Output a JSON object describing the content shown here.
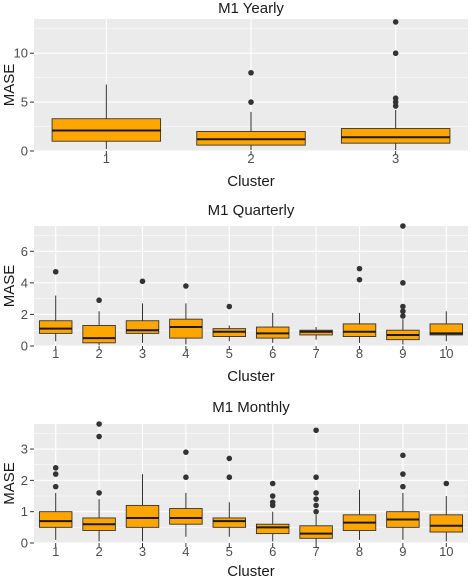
{
  "chart_data": [
    {
      "type": "box",
      "title": "M1 Yearly",
      "xlabel": "Cluster",
      "ylabel": "MASE",
      "ylim": [
        0,
        13.5
      ],
      "yticks": [
        0,
        5,
        10
      ],
      "categories": [
        "1",
        "2",
        "3"
      ],
      "boxes": [
        {
          "low": 0.2,
          "q1": 1.0,
          "median": 2.1,
          "q3": 3.3,
          "high": 6.8,
          "outliers": []
        },
        {
          "low": 0.1,
          "q1": 0.6,
          "median": 1.2,
          "q3": 2.0,
          "high": 4.0,
          "outliers": [
            5.0,
            8.0
          ]
        },
        {
          "low": 0.1,
          "q1": 0.8,
          "median": 1.4,
          "q3": 2.3,
          "high": 4.2,
          "outliers": [
            4.6,
            5.0,
            5.4,
            10.0,
            13.2
          ]
        }
      ]
    },
    {
      "type": "box",
      "title": "M1 Quarterly",
      "xlabel": "Cluster",
      "ylabel": "MASE",
      "ylim": [
        0,
        7.6
      ],
      "yticks": [
        0,
        2,
        4,
        6
      ],
      "categories": [
        "1",
        "2",
        "3",
        "4",
        "5",
        "6",
        "7",
        "8",
        "9",
        "10"
      ],
      "boxes": [
        {
          "low": 0.3,
          "q1": 0.8,
          "median": 1.1,
          "q3": 1.6,
          "high": 3.2,
          "outliers": [
            4.7
          ]
        },
        {
          "low": 0.05,
          "q1": 0.2,
          "median": 0.5,
          "q3": 1.3,
          "high": 2.2,
          "outliers": [
            2.9
          ]
        },
        {
          "low": 0.2,
          "q1": 0.8,
          "median": 1.0,
          "q3": 1.6,
          "high": 2.7,
          "outliers": [
            4.1
          ]
        },
        {
          "low": 0.1,
          "q1": 0.5,
          "median": 1.2,
          "q3": 1.7,
          "high": 2.7,
          "outliers": [
            3.8
          ]
        },
        {
          "low": 0.3,
          "q1": 0.6,
          "median": 0.9,
          "q3": 1.1,
          "high": 1.3,
          "outliers": [
            2.5
          ]
        },
        {
          "low": 0.2,
          "q1": 0.5,
          "median": 0.8,
          "q3": 1.2,
          "high": 2.1,
          "outliers": []
        },
        {
          "low": 0.4,
          "q1": 0.7,
          "median": 0.9,
          "q3": 1.0,
          "high": 1.2,
          "outliers": []
        },
        {
          "low": 0.2,
          "q1": 0.6,
          "median": 0.9,
          "q3": 1.4,
          "high": 2.1,
          "outliers": [
            4.2,
            4.9
          ]
        },
        {
          "low": 0.1,
          "q1": 0.4,
          "median": 0.7,
          "q3": 1.0,
          "high": 1.7,
          "outliers": [
            1.9,
            2.2,
            2.5,
            4.0,
            7.6
          ]
        },
        {
          "low": 0.3,
          "q1": 0.7,
          "median": 0.8,
          "q3": 1.4,
          "high": 2.2,
          "outliers": []
        }
      ]
    },
    {
      "type": "box",
      "title": "M1 Monthly",
      "xlabel": "Cluster",
      "ylabel": "MASE",
      "ylim": [
        0,
        3.8
      ],
      "yticks": [
        0,
        1,
        2,
        3
      ],
      "categories": [
        "1",
        "2",
        "3",
        "4",
        "5",
        "6",
        "7",
        "8",
        "9",
        "10"
      ],
      "boxes": [
        {
          "low": 0.1,
          "q1": 0.5,
          "median": 0.7,
          "q3": 1.0,
          "high": 1.6,
          "outliers": [
            1.8,
            2.2,
            2.4
          ]
        },
        {
          "low": 0.05,
          "q1": 0.4,
          "median": 0.6,
          "q3": 0.8,
          "high": 1.4,
          "outliers": [
            1.6,
            3.4,
            3.8
          ]
        },
        {
          "low": 0.05,
          "q1": 0.5,
          "median": 0.8,
          "q3": 1.2,
          "high": 2.2,
          "outliers": []
        },
        {
          "low": 0.2,
          "q1": 0.6,
          "median": 0.8,
          "q3": 1.1,
          "high": 1.6,
          "outliers": [
            2.1,
            2.9
          ]
        },
        {
          "low": 0.2,
          "q1": 0.5,
          "median": 0.7,
          "q3": 0.8,
          "high": 1.3,
          "outliers": [
            2.1,
            2.7
          ]
        },
        {
          "low": 0.05,
          "q1": 0.3,
          "median": 0.5,
          "q3": 0.6,
          "high": 1.0,
          "outliers": [
            1.2,
            1.3,
            1.5,
            1.9
          ]
        },
        {
          "low": 0.0,
          "q1": 0.15,
          "median": 0.3,
          "q3": 0.55,
          "high": 0.9,
          "outliers": [
            1.0,
            1.2,
            1.4,
            1.6,
            2.1,
            3.6
          ]
        },
        {
          "low": 0.1,
          "q1": 0.4,
          "median": 0.65,
          "q3": 0.9,
          "high": 1.7,
          "outliers": []
        },
        {
          "low": 0.1,
          "q1": 0.5,
          "median": 0.75,
          "q3": 1.0,
          "high": 1.6,
          "outliers": [
            1.8,
            2.2,
            2.8
          ]
        },
        {
          "low": 0.05,
          "q1": 0.35,
          "median": 0.55,
          "q3": 0.9,
          "high": 1.5,
          "outliers": [
            1.9
          ]
        }
      ]
    }
  ],
  "colors": {
    "box_fill": "#ffa500",
    "panel_bg": "#ebebeb",
    "outlier": "#333333"
  }
}
